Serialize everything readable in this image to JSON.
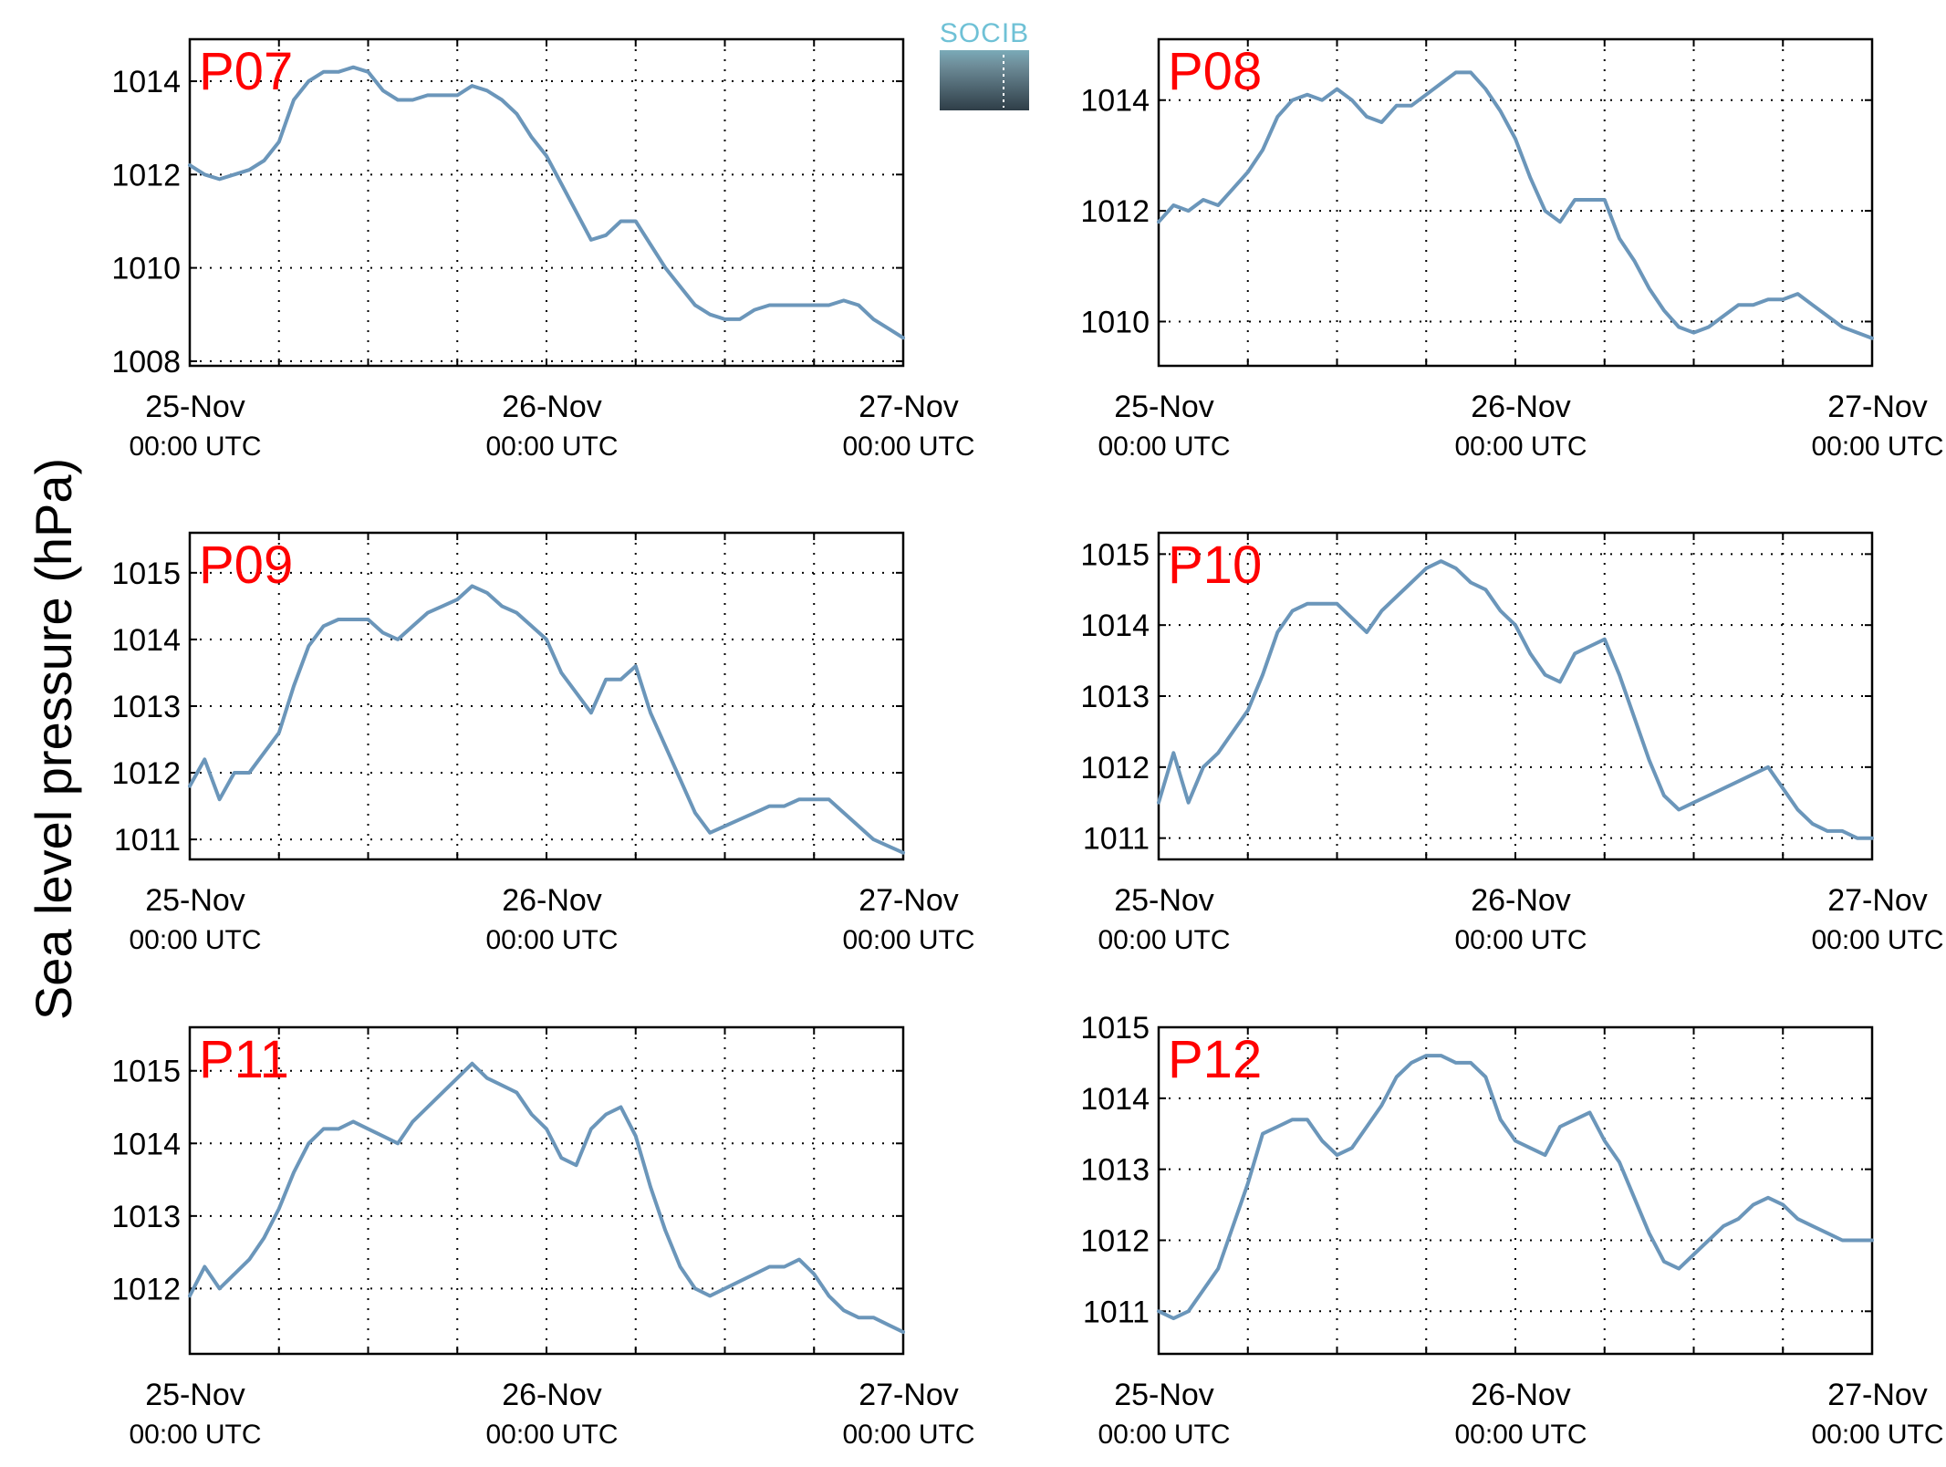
{
  "ylabel": "Sea level pressure (hPa)",
  "logo_text": "SOCIB",
  "title_color": "#ff0000",
  "line_color": "#6b96ba",
  "chart_data": [
    {
      "type": "line",
      "title": "P07",
      "x_ticks": [
        {
          "day": "25-Nov",
          "time": "00:00 UTC"
        },
        {
          "day": "26-Nov",
          "time": "00:00 UTC"
        },
        {
          "day": "27-Nov",
          "time": "00:00 UTC"
        }
      ],
      "xlim_hours": [
        0,
        48
      ],
      "ylim": [
        1007.9,
        1014.9
      ],
      "yticks": [
        1008,
        1010,
        1012,
        1014
      ],
      "series": [
        {
          "x": [
            0,
            1,
            2,
            3,
            4,
            5,
            6,
            7,
            8,
            9,
            10,
            11,
            12,
            13,
            14,
            15,
            16,
            17,
            18,
            19,
            20,
            21,
            22,
            23,
            24,
            25,
            26,
            27,
            28,
            29,
            30,
            31,
            32,
            33,
            34,
            35,
            36,
            37,
            38,
            39,
            40,
            41,
            42,
            43,
            44,
            45,
            46,
            47,
            48
          ],
          "values": [
            1012.2,
            1012.0,
            1011.9,
            1012.0,
            1012.1,
            1012.3,
            1012.7,
            1013.6,
            1014.0,
            1014.2,
            1014.2,
            1014.3,
            1014.2,
            1013.8,
            1013.6,
            1013.6,
            1013.7,
            1013.7,
            1013.7,
            1013.9,
            1013.8,
            1013.6,
            1013.3,
            1012.8,
            1012.4,
            1011.8,
            1011.2,
            1010.6,
            1010.7,
            1011.0,
            1011.0,
            1010.5,
            1010.0,
            1009.6,
            1009.2,
            1009.0,
            1008.9,
            1008.9,
            1009.1,
            1009.2,
            1009.2,
            1009.2,
            1009.2,
            1009.2,
            1009.3,
            1009.2,
            1008.9,
            1008.7,
            1008.5
          ]
        }
      ]
    },
    {
      "type": "line",
      "title": "P08",
      "x_ticks": [
        {
          "day": "25-Nov",
          "time": "00:00 UTC"
        },
        {
          "day": "26-Nov",
          "time": "00:00 UTC"
        },
        {
          "day": "27-Nov",
          "time": "00:00 UTC"
        }
      ],
      "xlim_hours": [
        0,
        48
      ],
      "ylim": [
        1009.2,
        1015.1
      ],
      "yticks": [
        1010,
        1012,
        1014
      ],
      "series": [
        {
          "x": [
            0,
            1,
            2,
            3,
            4,
            5,
            6,
            7,
            8,
            9,
            10,
            11,
            12,
            13,
            14,
            15,
            16,
            17,
            18,
            19,
            20,
            21,
            22,
            23,
            24,
            25,
            26,
            27,
            28,
            29,
            30,
            31,
            32,
            33,
            34,
            35,
            36,
            37,
            38,
            39,
            40,
            41,
            42,
            43,
            44,
            45,
            46,
            47,
            48
          ],
          "values": [
            1011.8,
            1012.1,
            1012.0,
            1012.2,
            1012.1,
            1012.4,
            1012.7,
            1013.1,
            1013.7,
            1014.0,
            1014.1,
            1014.0,
            1014.2,
            1014.0,
            1013.7,
            1013.6,
            1013.9,
            1013.9,
            1014.1,
            1014.3,
            1014.5,
            1014.5,
            1014.2,
            1013.8,
            1013.3,
            1012.6,
            1012.0,
            1011.8,
            1012.2,
            1012.2,
            1012.2,
            1011.5,
            1011.1,
            1010.6,
            1010.2,
            1009.9,
            1009.8,
            1009.9,
            1010.1,
            1010.3,
            1010.3,
            1010.4,
            1010.4,
            1010.5,
            1010.3,
            1010.1,
            1009.9,
            1009.8,
            1009.7
          ]
        }
      ]
    },
    {
      "type": "line",
      "title": "P09",
      "x_ticks": [
        {
          "day": "25-Nov",
          "time": "00:00 UTC"
        },
        {
          "day": "26-Nov",
          "time": "00:00 UTC"
        },
        {
          "day": "27-Nov",
          "time": "00:00 UTC"
        }
      ],
      "xlim_hours": [
        0,
        48
      ],
      "ylim": [
        1010.7,
        1015.6
      ],
      "yticks": [
        1011,
        1012,
        1013,
        1014,
        1015
      ],
      "series": [
        {
          "x": [
            0,
            1,
            2,
            3,
            4,
            5,
            6,
            7,
            8,
            9,
            10,
            11,
            12,
            13,
            14,
            15,
            16,
            17,
            18,
            19,
            20,
            21,
            22,
            23,
            24,
            25,
            26,
            27,
            28,
            29,
            30,
            31,
            32,
            33,
            34,
            35,
            36,
            37,
            38,
            39,
            40,
            41,
            42,
            43,
            44,
            45,
            46,
            47,
            48
          ],
          "values": [
            1011.8,
            1012.2,
            1011.6,
            1012.0,
            1012.0,
            1012.3,
            1012.6,
            1013.3,
            1013.9,
            1014.2,
            1014.3,
            1014.3,
            1014.3,
            1014.1,
            1014.0,
            1014.2,
            1014.4,
            1014.5,
            1014.6,
            1014.8,
            1014.7,
            1014.5,
            1014.4,
            1014.2,
            1014.0,
            1013.5,
            1013.2,
            1012.9,
            1013.4,
            1013.4,
            1013.6,
            1012.9,
            1012.4,
            1011.9,
            1011.4,
            1011.1,
            1011.2,
            1011.3,
            1011.4,
            1011.5,
            1011.5,
            1011.6,
            1011.6,
            1011.6,
            1011.4,
            1011.2,
            1011.0,
            1010.9,
            1010.8
          ]
        }
      ]
    },
    {
      "type": "line",
      "title": "P10",
      "x_ticks": [
        {
          "day": "25-Nov",
          "time": "00:00 UTC"
        },
        {
          "day": "26-Nov",
          "time": "00:00 UTC"
        },
        {
          "day": "27-Nov",
          "time": "00:00 UTC"
        }
      ],
      "xlim_hours": [
        0,
        48
      ],
      "ylim": [
        1010.7,
        1015.3
      ],
      "yticks": [
        1011,
        1012,
        1013,
        1014,
        1015
      ],
      "series": [
        {
          "x": [
            0,
            1,
            2,
            3,
            4,
            5,
            6,
            7,
            8,
            9,
            10,
            11,
            12,
            13,
            14,
            15,
            16,
            17,
            18,
            19,
            20,
            21,
            22,
            23,
            24,
            25,
            26,
            27,
            28,
            29,
            30,
            31,
            32,
            33,
            34,
            35,
            36,
            37,
            38,
            39,
            40,
            41,
            42,
            43,
            44,
            45,
            46,
            47,
            48
          ],
          "values": [
            1011.5,
            1012.2,
            1011.5,
            1012.0,
            1012.2,
            1012.5,
            1012.8,
            1013.3,
            1013.9,
            1014.2,
            1014.3,
            1014.3,
            1014.3,
            1014.1,
            1013.9,
            1014.2,
            1014.4,
            1014.6,
            1014.8,
            1014.9,
            1014.8,
            1014.6,
            1014.5,
            1014.2,
            1014.0,
            1013.6,
            1013.3,
            1013.2,
            1013.6,
            1013.7,
            1013.8,
            1013.3,
            1012.7,
            1012.1,
            1011.6,
            1011.4,
            1011.5,
            1011.6,
            1011.7,
            1011.8,
            1011.9,
            1012.0,
            1011.7,
            1011.4,
            1011.2,
            1011.1,
            1011.1,
            1011.0,
            1011.0
          ]
        }
      ]
    },
    {
      "type": "line",
      "title": "P11",
      "x_ticks": [
        {
          "day": "25-Nov",
          "time": "00:00 UTC"
        },
        {
          "day": "26-Nov",
          "time": "00:00 UTC"
        },
        {
          "day": "27-Nov",
          "time": "00:00 UTC"
        }
      ],
      "xlim_hours": [
        0,
        48
      ],
      "ylim": [
        1011.1,
        1015.6
      ],
      "yticks": [
        1012,
        1013,
        1014,
        1015
      ],
      "series": [
        {
          "x": [
            0,
            1,
            2,
            3,
            4,
            5,
            6,
            7,
            8,
            9,
            10,
            11,
            12,
            13,
            14,
            15,
            16,
            17,
            18,
            19,
            20,
            21,
            22,
            23,
            24,
            25,
            26,
            27,
            28,
            29,
            30,
            31,
            32,
            33,
            34,
            35,
            36,
            37,
            38,
            39,
            40,
            41,
            42,
            43,
            44,
            45,
            46,
            47,
            48
          ],
          "values": [
            1011.9,
            1012.3,
            1012.0,
            1012.2,
            1012.4,
            1012.7,
            1013.1,
            1013.6,
            1014.0,
            1014.2,
            1014.2,
            1014.3,
            1014.2,
            1014.1,
            1014.0,
            1014.3,
            1014.5,
            1014.7,
            1014.9,
            1015.1,
            1014.9,
            1014.8,
            1014.7,
            1014.4,
            1014.2,
            1013.8,
            1013.7,
            1014.2,
            1014.4,
            1014.5,
            1014.1,
            1013.4,
            1012.8,
            1012.3,
            1012.0,
            1011.9,
            1012.0,
            1012.1,
            1012.2,
            1012.3,
            1012.3,
            1012.4,
            1012.2,
            1011.9,
            1011.7,
            1011.6,
            1011.6,
            1011.5,
            1011.4
          ]
        }
      ]
    },
    {
      "type": "line",
      "title": "P12",
      "x_ticks": [
        {
          "day": "25-Nov",
          "time": "00:00 UTC"
        },
        {
          "day": "26-Nov",
          "time": "00:00 UTC"
        },
        {
          "day": "27-Nov",
          "time": "00:00 UTC"
        }
      ],
      "xlim_hours": [
        0,
        48
      ],
      "ylim": [
        1010.4,
        1015.0
      ],
      "yticks": [
        1011,
        1012,
        1013,
        1014,
        1015
      ],
      "series": [
        {
          "x": [
            0,
            1,
            2,
            3,
            4,
            5,
            6,
            7,
            8,
            9,
            10,
            11,
            12,
            13,
            14,
            15,
            16,
            17,
            18,
            19,
            20,
            21,
            22,
            23,
            24,
            25,
            26,
            27,
            28,
            29,
            30,
            31,
            32,
            33,
            34,
            35,
            36,
            37,
            38,
            39,
            40,
            41,
            42,
            43,
            44,
            45,
            46,
            47,
            48
          ],
          "values": [
            1011.0,
            1010.9,
            1011.0,
            1011.3,
            1011.6,
            1012.2,
            1012.8,
            1013.5,
            1013.6,
            1013.7,
            1013.7,
            1013.4,
            1013.2,
            1013.3,
            1013.6,
            1013.9,
            1014.3,
            1014.5,
            1014.6,
            1014.6,
            1014.5,
            1014.5,
            1014.3,
            1013.7,
            1013.4,
            1013.3,
            1013.2,
            1013.6,
            1013.7,
            1013.8,
            1013.4,
            1013.1,
            1012.6,
            1012.1,
            1011.7,
            1011.6,
            1011.8,
            1012.0,
            1012.2,
            1012.3,
            1012.5,
            1012.6,
            1012.5,
            1012.3,
            1012.2,
            1012.1,
            1012.0,
            1012.0,
            1012.0
          ]
        }
      ]
    }
  ]
}
